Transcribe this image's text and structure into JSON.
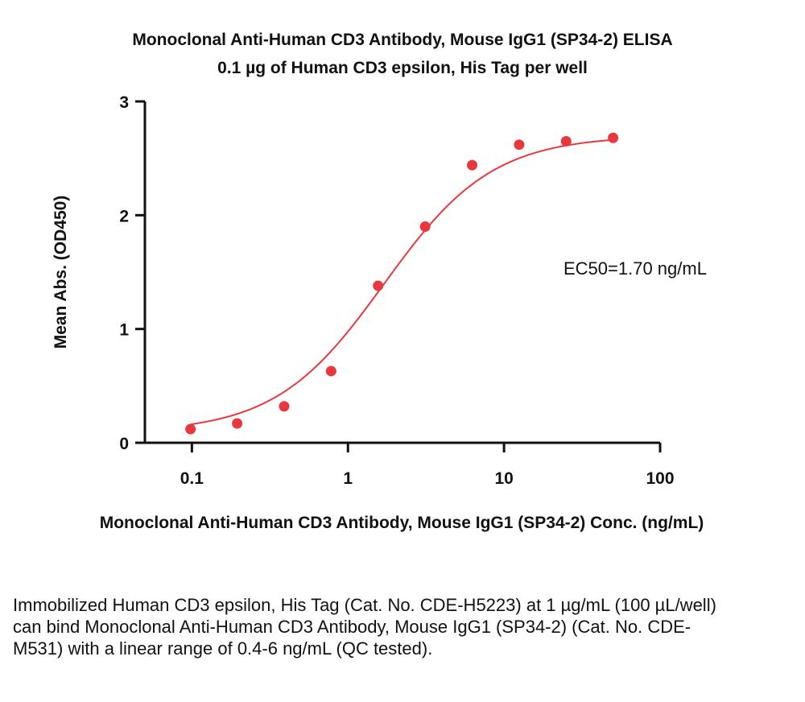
{
  "chart_data": {
    "type": "scatter",
    "title": "Monoclonal Anti-Human CD3 Antibody, Mouse IgG1 (SP34-2) ELISA",
    "subtitle": "0.1 µg of Human CD3 epsilon, His Tag per well",
    "xlabel": "Monoclonal Anti-Human CD3 Antibody, Mouse IgG1 (SP34-2) Conc. (ng/mL)",
    "ylabel": "Mean Abs. (OD450)",
    "xscale": "log",
    "xlim": [
      0.05,
      100
    ],
    "ylim": [
      0,
      3
    ],
    "xticks": [
      0.1,
      1,
      10,
      100
    ],
    "xtick_labels": [
      "0.1",
      "1",
      "10",
      "100"
    ],
    "yticks": [
      0,
      1,
      2,
      3
    ],
    "ytick_labels": [
      "0",
      "1",
      "2",
      "3"
    ],
    "grid": false,
    "series": [
      {
        "x": [
          0.098,
          0.195,
          0.39,
          0.78,
          1.56,
          3.125,
          6.25,
          12.5,
          25,
          50
        ],
        "y": [
          0.12,
          0.17,
          0.32,
          0.63,
          1.38,
          1.9,
          2.44,
          2.62,
          2.65,
          2.68
        ],
        "color": "#e8383d",
        "fit": "4PL sigmoid"
      }
    ],
    "annotation": "EC50=1.70 ng/mL"
  },
  "caption": "Immobilized Human CD3 epsilon, His Tag (Cat. No. CDE-H5223) at 1 µg/mL (100 µL/well) can bind Monoclonal Anti-Human CD3 Antibody, Mouse IgG1 (SP34-2) (Cat. No. CDE-M531) with a linear range of 0.4-6 ng/mL (QC tested)."
}
